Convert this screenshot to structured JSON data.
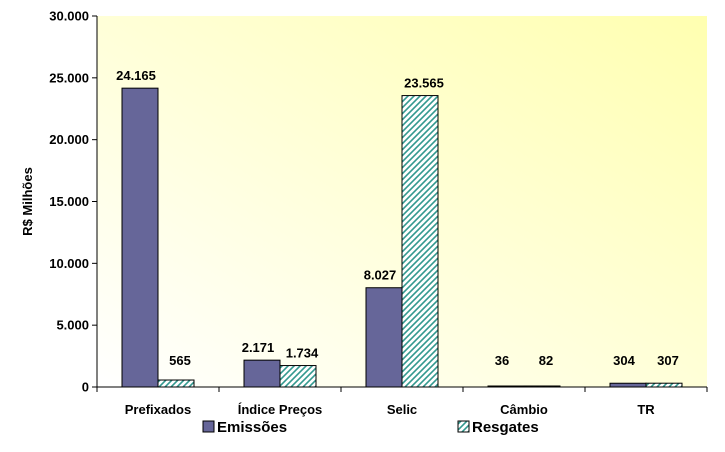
{
  "chart_data": {
    "type": "bar",
    "title": "",
    "xlabel": "",
    "ylabel": "R$ Milhões",
    "ylim": [
      0,
      30000
    ],
    "ytick_values": [
      0,
      5000,
      10000,
      15000,
      20000,
      25000,
      30000
    ],
    "ytick_labels": [
      "0",
      "5.000",
      "10.000",
      "15.000",
      "20.000",
      "25.000",
      "30.000"
    ],
    "categories": [
      "Prefixados",
      "Índice Preços",
      "Selic",
      "Câmbio",
      "TR"
    ],
    "series": [
      {
        "name": "Emissões",
        "values": [
          24165,
          2171,
          8027,
          36,
          304
        ],
        "labels": [
          "24.165",
          "2.171",
          "8.027",
          "36",
          "304"
        ],
        "color": "#666699",
        "pattern": "solid"
      },
      {
        "name": "Resgates",
        "values": [
          565,
          1734,
          23565,
          82,
          307
        ],
        "labels": [
          "565",
          "1.734",
          "23.565",
          "82",
          "307"
        ],
        "color": "#33998F",
        "pattern": "diagonal-hatch"
      }
    ],
    "grid": false,
    "legend": "bottom",
    "plot_background": [
      "#FFFFFF",
      "#FFFFB0"
    ]
  }
}
